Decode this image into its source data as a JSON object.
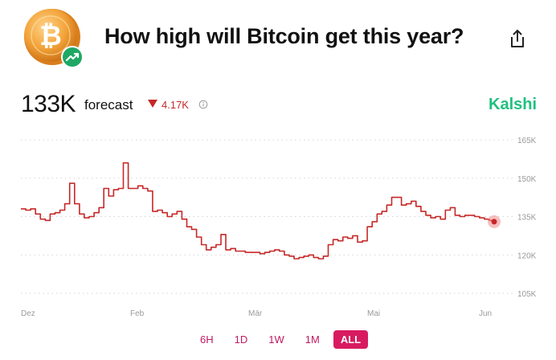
{
  "header": {
    "title": "How high will Bitcoin get this year?",
    "coin_icon": "bitcoin-coin-icon",
    "badge_icon": "trending-up-icon",
    "share_icon": "share-icon"
  },
  "summary": {
    "value": "133K",
    "label": "forecast",
    "delta": "4.17K",
    "delta_direction": "down",
    "delta_color": "#c62828",
    "info_icon": "info-icon"
  },
  "brand": {
    "name": "Kalshi",
    "color": "#21c07f"
  },
  "chart_data": {
    "type": "line",
    "x_ticks": [
      "Dez",
      "Feb",
      "Mär",
      "Mai",
      "Jun"
    ],
    "y_ticks": [
      "165K",
      "150K",
      "135K",
      "120K",
      "105K"
    ],
    "y_tick_values": [
      165000,
      150000,
      135000,
      120000,
      105000
    ],
    "ylim": [
      105000,
      165000
    ],
    "grid": "dotted horizontal",
    "line_color": "#c62828",
    "series": [
      {
        "values": [
          138000,
          137500,
          138000,
          136000,
          134000,
          133500,
          136000,
          136500,
          137500,
          140000,
          148000,
          140000,
          136000,
          134500,
          135000,
          136500,
          138500,
          146000,
          143000,
          145500,
          146000,
          156000,
          146000,
          146000,
          147000,
          146000,
          145000,
          137000,
          137500,
          136500,
          135000,
          136000,
          137000,
          134000,
          131000,
          130000,
          127000,
          124000,
          122000,
          123000,
          124000,
          128000,
          122000,
          122500,
          121500,
          121500,
          121000,
          121000,
          121000,
          120500,
          121000,
          121500,
          122000,
          121500,
          120000,
          119500,
          118500,
          119000,
          119500,
          120000,
          119000,
          118500,
          119500,
          124000,
          126000,
          125500,
          127000,
          126500,
          127500,
          125000,
          125500,
          131000,
          133000,
          136000,
          137000,
          139500,
          142500,
          142500,
          139500,
          140000,
          141000,
          139000,
          137000,
          135500,
          134500,
          135000,
          134000,
          137500,
          138500,
          135500,
          135000,
          135500,
          135500,
          135000,
          134500,
          134000,
          133500,
          133000
        ]
      }
    ],
    "last_point_highlight": true
  },
  "ranges": {
    "items": [
      {
        "key": "6h",
        "label": "6H"
      },
      {
        "key": "1d",
        "label": "1D"
      },
      {
        "key": "1w",
        "label": "1W"
      },
      {
        "key": "1m",
        "label": "1M"
      },
      {
        "key": "all",
        "label": "ALL"
      }
    ],
    "selected": "ALL"
  }
}
